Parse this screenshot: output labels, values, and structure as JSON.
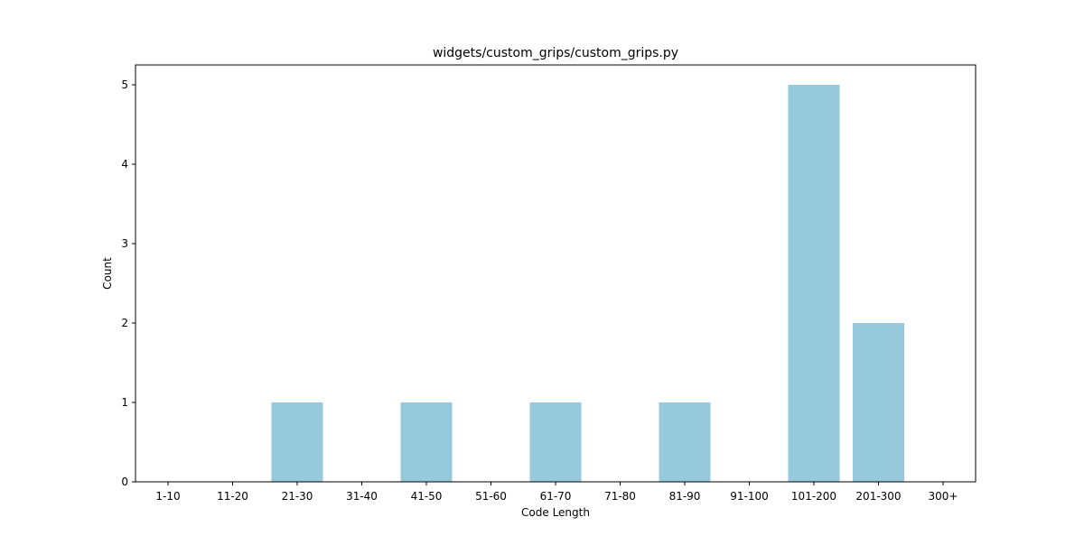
{
  "chart_data": {
    "type": "bar",
    "title": "widgets/custom_grips/custom_grips.py",
    "xlabel": "Code Length",
    "ylabel": "Count",
    "categories": [
      "1-10",
      "11-20",
      "21-30",
      "31-40",
      "41-50",
      "51-60",
      "61-70",
      "71-80",
      "81-90",
      "91-100",
      "101-200",
      "201-300",
      "300+"
    ],
    "values": [
      0,
      0,
      1,
      0,
      1,
      0,
      1,
      0,
      1,
      0,
      5,
      2,
      0
    ],
    "ylim": [
      0,
      5.25
    ],
    "yticks": [
      0,
      1,
      2,
      3,
      4,
      5
    ],
    "bar_color": "#96c9dc",
    "grid": false,
    "legend": "none"
  }
}
